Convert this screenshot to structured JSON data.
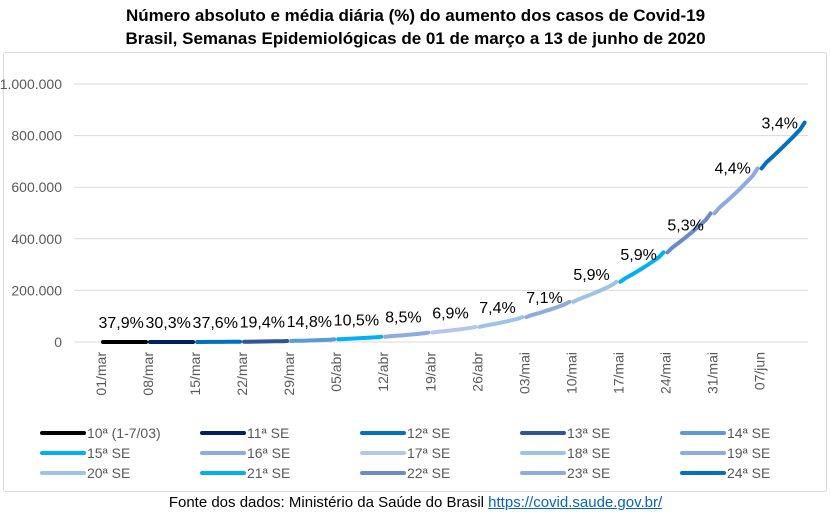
{
  "chart_data": {
    "type": "line",
    "title": "Número absoluto e média diária (%) do aumento dos casos de Covid-19",
    "subtitle": "Brasil, Semanas Epidemiológicas de 01 de março a 13 de junho de 2020",
    "ylim": [
      0,
      1000000
    ],
    "yticks": [
      "0",
      "200.000",
      "400.000",
      "600.000",
      "800.000",
      "1.000.000"
    ],
    "ytick_values": [
      0,
      200000,
      400000,
      600000,
      800000,
      1000000
    ],
    "xticks": [
      "01/mar",
      "08/mar",
      "15/mar",
      "22/mar",
      "29/mar",
      "05/abr",
      "12/abr",
      "19/abr",
      "26/abr",
      "03/mai",
      "10/mai",
      "17/mai",
      "24/mai",
      "31/mai",
      "07/jun"
    ],
    "legend_position": "bottom",
    "series": [
      {
        "name": "10ª (1-7/03)",
        "start_value": 1,
        "end_value": 19,
        "label": "37,9%",
        "color": "#000000"
      },
      {
        "name": "11ª SE",
        "start_value": 19,
        "end_value": 121,
        "label": "30,3%",
        "color": "#002060"
      },
      {
        "name": "12ª SE",
        "start_value": 121,
        "end_value": 1128,
        "label": "37,6%",
        "color": "#0070C0"
      },
      {
        "name": "13ª SE",
        "start_value": 1128,
        "end_value": 3904,
        "label": "19,4%",
        "color": "#2F5597"
      },
      {
        "name": "14ª SE",
        "start_value": 3904,
        "end_value": 10278,
        "label": "14,8%",
        "color": "#5B9BD5"
      },
      {
        "name": "15ª SE",
        "start_value": 10278,
        "end_value": 20727,
        "label": "10,5%",
        "color": "#00B0F0"
      },
      {
        "name": "16ª SE",
        "start_value": 20727,
        "end_value": 36599,
        "label": "8,5%",
        "color": "#8FAADC"
      },
      {
        "name": "17ª SE",
        "start_value": 36599,
        "end_value": 58509,
        "label": "6,9%",
        "color": "#B4C7E7"
      },
      {
        "name": "18ª SE",
        "start_value": 58509,
        "end_value": 96559,
        "label": "7,4%",
        "color": "#9DC3E6"
      },
      {
        "name": "19ª SE",
        "start_value": 96559,
        "end_value": 155939,
        "label": "7,1%",
        "color": "#8FAADC"
      },
      {
        "name": "20ª SE",
        "start_value": 155939,
        "end_value": 233142,
        "label": "5,9%",
        "color": "#9DC3E6"
      },
      {
        "name": "21ª SE",
        "start_value": 233142,
        "end_value": 347398,
        "label": "5,9%",
        "color": "#00B0F0"
      },
      {
        "name": "22ª SE",
        "start_value": 347398,
        "end_value": 498440,
        "label": "5,3%",
        "color": "#6A8CCB"
      },
      {
        "name": "23ª SE",
        "start_value": 498440,
        "end_value": 672846,
        "label": "4,4%",
        "color": "#8FAADC"
      },
      {
        "name": "24ª SE",
        "start_value": 672846,
        "end_value": 850514,
        "label": "3,4%",
        "color": "#0070C0"
      }
    ]
  },
  "source": {
    "prefix": "Fonte dos dados: Ministério da Saúde do Brasil ",
    "link": "https://covid.saude.gov.br/"
  }
}
